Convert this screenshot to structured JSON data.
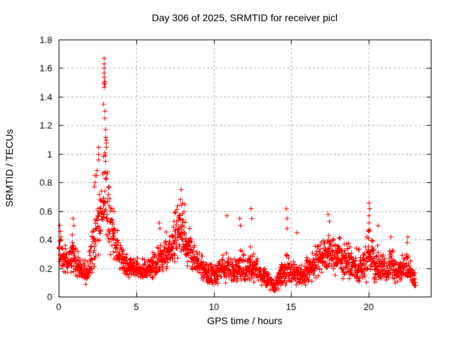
{
  "colors": {
    "background": "#ffffff",
    "axis": "#000000",
    "grid": "#b0b0b0",
    "marker": "#ff0000",
    "text": "#000000"
  },
  "chart_data": {
    "type": "scatter",
    "title": "Day 306 of 2025, SRMTID for receiver picl",
    "xlabel": "GPS time / hours",
    "ylabel": "SRMTID / TECUs",
    "xlim": [
      0,
      24
    ],
    "ylim": [
      0,
      1.8
    ],
    "xticks": [
      0,
      5,
      10,
      15,
      20
    ],
    "yticks": [
      0,
      0.2,
      0.4,
      0.6,
      0.8,
      1,
      1.2,
      1.4,
      1.6,
      1.8
    ],
    "grid": true,
    "legend": "none",
    "marker": {
      "symbol": "+",
      "color": "#ff0000",
      "size": 7
    },
    "x_data_range": [
      0.0,
      22.97
    ],
    "n_points": 2000,
    "seed": 1306,
    "profile": [
      [
        0.0,
        0.3,
        0.13
      ],
      [
        0.3,
        0.26,
        0.1
      ],
      [
        0.6,
        0.24,
        0.1
      ],
      [
        0.9,
        0.3,
        0.14
      ],
      [
        1.2,
        0.22,
        0.09
      ],
      [
        1.5,
        0.2,
        0.08
      ],
      [
        1.8,
        0.16,
        0.09
      ],
      [
        2.1,
        0.28,
        0.14
      ],
      [
        2.35,
        0.45,
        0.28
      ],
      [
        2.55,
        0.55,
        0.35
      ],
      [
        2.75,
        0.6,
        0.28
      ],
      [
        2.92,
        0.85,
        0.5
      ],
      [
        3.05,
        0.75,
        0.4
      ],
      [
        3.2,
        0.55,
        0.25
      ],
      [
        3.45,
        0.45,
        0.18
      ],
      [
        3.7,
        0.35,
        0.13
      ],
      [
        4.0,
        0.27,
        0.1
      ],
      [
        4.4,
        0.21,
        0.08
      ],
      [
        4.8,
        0.2,
        0.07
      ],
      [
        5.2,
        0.19,
        0.07
      ],
      [
        5.6,
        0.18,
        0.07
      ],
      [
        6.0,
        0.21,
        0.09
      ],
      [
        6.5,
        0.27,
        0.13
      ],
      [
        7.0,
        0.3,
        0.14
      ],
      [
        7.5,
        0.4,
        0.17
      ],
      [
        7.9,
        0.46,
        0.2
      ],
      [
        8.2,
        0.38,
        0.17
      ],
      [
        8.6,
        0.28,
        0.12
      ],
      [
        9.0,
        0.23,
        0.1
      ],
      [
        9.5,
        0.17,
        0.08
      ],
      [
        10.0,
        0.14,
        0.08
      ],
      [
        10.5,
        0.18,
        0.09
      ],
      [
        10.9,
        0.2,
        0.11
      ],
      [
        11.3,
        0.17,
        0.08
      ],
      [
        11.7,
        0.21,
        0.11
      ],
      [
        12.1,
        0.18,
        0.09
      ],
      [
        12.45,
        0.23,
        0.13
      ],
      [
        12.8,
        0.17,
        0.08
      ],
      [
        13.2,
        0.14,
        0.07
      ],
      [
        13.6,
        0.1,
        0.06
      ],
      [
        13.9,
        0.06,
        0.05
      ],
      [
        14.2,
        0.13,
        0.08
      ],
      [
        14.65,
        0.2,
        0.13
      ],
      [
        15.0,
        0.17,
        0.08
      ],
      [
        15.5,
        0.15,
        0.08
      ],
      [
        16.0,
        0.17,
        0.09
      ],
      [
        16.5,
        0.23,
        0.12
      ],
      [
        17.0,
        0.28,
        0.13
      ],
      [
        17.4,
        0.31,
        0.15
      ],
      [
        17.8,
        0.28,
        0.14
      ],
      [
        18.2,
        0.26,
        0.13
      ],
      [
        18.6,
        0.24,
        0.12
      ],
      [
        19.0,
        0.21,
        0.11
      ],
      [
        19.5,
        0.19,
        0.11
      ],
      [
        20.0,
        0.3,
        0.2
      ],
      [
        20.35,
        0.2,
        0.11
      ],
      [
        20.65,
        0.23,
        0.13
      ],
      [
        21.0,
        0.17,
        0.08
      ],
      [
        21.4,
        0.21,
        0.11
      ],
      [
        21.8,
        0.17,
        0.08
      ],
      [
        22.2,
        0.19,
        0.09
      ],
      [
        22.5,
        0.21,
        0.11
      ],
      [
        22.75,
        0.15,
        0.08
      ],
      [
        23.0,
        0.12,
        0.06
      ]
    ],
    "spikes": [
      [
        0.05,
        0.5
      ],
      [
        0.08,
        0.46
      ],
      [
        0.92,
        0.55
      ],
      [
        0.95,
        0.5
      ],
      [
        2.3,
        0.85
      ],
      [
        2.32,
        0.8
      ],
      [
        2.28,
        0.77
      ],
      [
        2.54,
        1.05
      ],
      [
        2.56,
        1.0
      ],
      [
        2.55,
        0.96
      ],
      [
        2.88,
        1.35
      ],
      [
        2.9,
        1.67
      ],
      [
        2.91,
        1.63
      ],
      [
        2.92,
        1.6
      ],
      [
        2.93,
        1.57
      ],
      [
        2.9,
        1.54
      ],
      [
        2.94,
        1.51
      ],
      [
        2.92,
        1.5
      ],
      [
        2.95,
        1.49
      ],
      [
        2.93,
        1.47
      ],
      [
        2.96,
        1.3
      ],
      [
        2.97,
        1.25
      ],
      [
        2.99,
        1.17
      ],
      [
        3.02,
        1.12
      ],
      [
        3.04,
        1.08
      ],
      [
        3.06,
        1.05
      ],
      [
        3.0,
        0.95
      ],
      [
        6.45,
        0.52
      ],
      [
        6.5,
        0.48
      ],
      [
        7.88,
        0.75
      ],
      [
        7.83,
        0.68
      ],
      [
        7.95,
        0.66
      ],
      [
        8.1,
        0.65
      ],
      [
        8.05,
        0.6
      ],
      [
        10.85,
        0.57
      ],
      [
        11.68,
        0.55
      ],
      [
        11.72,
        0.5
      ],
      [
        12.4,
        0.62
      ],
      [
        12.43,
        0.55
      ],
      [
        14.68,
        0.62
      ],
      [
        14.7,
        0.55
      ],
      [
        14.73,
        0.48
      ],
      [
        15.35,
        0.45
      ],
      [
        17.35,
        0.58
      ],
      [
        17.42,
        0.53
      ],
      [
        20.0,
        0.66
      ],
      [
        20.02,
        0.62
      ],
      [
        19.98,
        0.57
      ],
      [
        20.0,
        0.52
      ],
      [
        20.05,
        0.47
      ],
      [
        20.6,
        0.5
      ],
      [
        21.4,
        0.42
      ],
      [
        22.5,
        0.42
      ],
      [
        22.45,
        0.38
      ]
    ]
  }
}
